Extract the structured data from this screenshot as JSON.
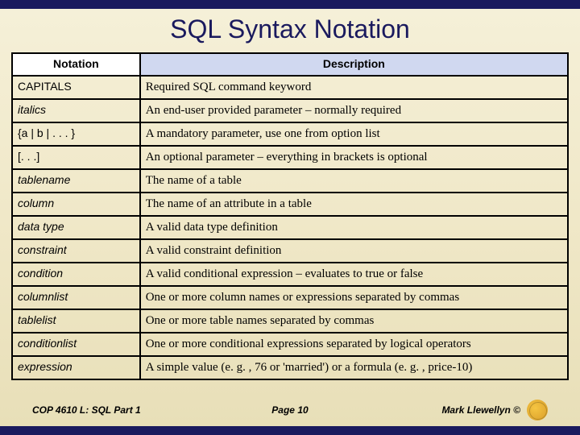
{
  "title": "SQL Syntax Notation",
  "headers": {
    "notation": "Notation",
    "description": "Description"
  },
  "rows": [
    {
      "notation": "CAPITALS",
      "italic": false,
      "desc": "Required SQL command keyword"
    },
    {
      "notation": "italics",
      "italic": true,
      "desc": "An end-user provided parameter – normally required"
    },
    {
      "notation": "{a | b | . . . }",
      "italic": false,
      "desc": "A mandatory parameter, use one from option list"
    },
    {
      "notation": "[. . .]",
      "italic": false,
      "desc": "An optional parameter – everything in brackets is optional"
    },
    {
      "notation": "tablename",
      "italic": true,
      "desc": "The name of a table"
    },
    {
      "notation": "column",
      "italic": true,
      "desc": "The name of an attribute in a table"
    },
    {
      "notation": "data type",
      "italic": true,
      "desc": "A valid data type definition"
    },
    {
      "notation": "constraint",
      "italic": true,
      "desc": "A valid constraint definition"
    },
    {
      "notation": "condition",
      "italic": true,
      "desc": "A valid conditional expression – evaluates to true or false"
    },
    {
      "notation": "columnlist",
      "italic": true,
      "desc": "One or more column names or expressions separated by commas"
    },
    {
      "notation": "tablelist",
      "italic": true,
      "desc": "One or more table names separated by commas"
    },
    {
      "notation": "conditionlist",
      "italic": true,
      "desc": "One or more conditional expressions separated by logical operators"
    },
    {
      "notation": "expression",
      "italic": true,
      "desc": "A simple value (e. g. , 76 or 'married') or a formula (e. g. , price-10)"
    }
  ],
  "footer": {
    "left": "COP 4610 L: SQL Part 1",
    "center": "Page 10",
    "right": "Mark Llewellyn ©"
  }
}
